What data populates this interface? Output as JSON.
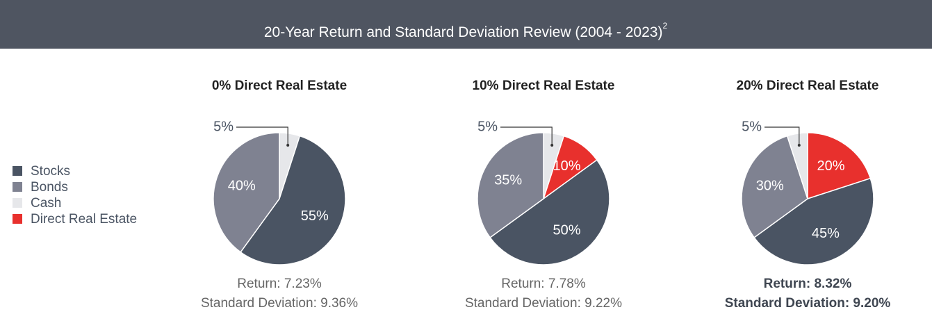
{
  "header": {
    "title": "20-Year Return and Standard Deviation Review (2004 - 2023)",
    "footnote": "2"
  },
  "legend": {
    "labels": [
      "Stocks",
      "Bonds",
      "Cash",
      "Direct Real Estate"
    ],
    "colors": [
      "#4a5463",
      "#7f8291",
      "#e6e7ea",
      "#e8302d"
    ]
  },
  "chart_data": [
    {
      "type": "pie",
      "title": "0% Direct Real Estate",
      "categories": [
        "Cash",
        "Stocks",
        "Bonds"
      ],
      "values": [
        5,
        55,
        40
      ],
      "value_labels": [
        "5%",
        "55%",
        "40%"
      ],
      "colors": [
        "#e6e7ea",
        "#4a5463",
        "#7f8291"
      ],
      "stats": [
        "Return: 7.23%",
        "Standard Deviation: 9.36%"
      ],
      "highlight": false
    },
    {
      "type": "pie",
      "title": "10% Direct Real Estate",
      "categories": [
        "Cash",
        "Direct Real Estate",
        "Stocks",
        "Bonds"
      ],
      "values": [
        5,
        10,
        50,
        35
      ],
      "value_labels": [
        "5%",
        "10%",
        "50%",
        "35%"
      ],
      "colors": [
        "#e6e7ea",
        "#e8302d",
        "#4a5463",
        "#7f8291"
      ],
      "stats": [
        "Return: 7.78%",
        "Standard Deviation: 9.22%"
      ],
      "highlight": false
    },
    {
      "type": "pie",
      "title": "20% Direct Real Estate",
      "categories": [
        "Direct Real Estate",
        "Stocks",
        "Bonds",
        "Cash"
      ],
      "values": [
        20,
        45,
        30,
        5
      ],
      "value_labels": [
        "20%",
        "45%",
        "30%",
        "5%"
      ],
      "colors": [
        "#e8302d",
        "#4a5463",
        "#7f8291",
        "#e6e7ea"
      ],
      "stats": [
        "Return: 8.32%",
        "Standard Deviation: 9.20%"
      ],
      "highlight": true
    }
  ]
}
